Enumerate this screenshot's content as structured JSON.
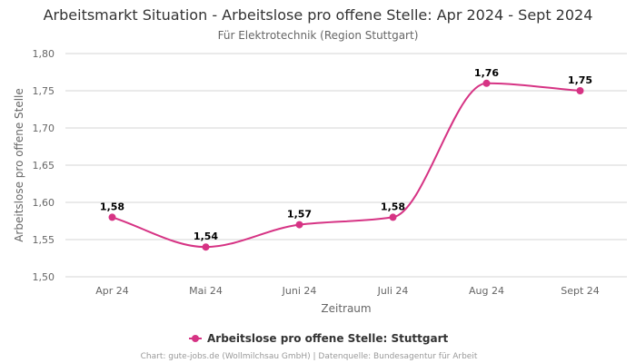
{
  "chart_data": {
    "type": "line",
    "title": "Arbeitsmarkt Situation - Arbeitslose pro offene Stelle: Apr 2024 - Sept 2024",
    "subtitle": "Für Elektrotechnik (Region Stuttgart)",
    "xlabel": "Zeitraum",
    "ylabel": "Arbeitslose pro offene Stelle",
    "categories": [
      "Apr 24",
      "Mai 24",
      "Juni 24",
      "Juli 24",
      "Aug 24",
      "Sept 24"
    ],
    "series": [
      {
        "name": "Arbeitslose pro offene Stelle: Stuttgart",
        "values": [
          1.58,
          1.54,
          1.57,
          1.58,
          1.76,
          1.75
        ],
        "labels": [
          "1,58",
          "1,54",
          "1,57",
          "1,58",
          "1,76",
          "1,75"
        ],
        "color": "#d63384"
      }
    ],
    "ylim": [
      1.5,
      1.8
    ],
    "yticks": [
      1.5,
      1.55,
      1.6,
      1.65,
      1.7,
      1.75,
      1.8
    ],
    "ytick_labels": [
      "1,50",
      "1,55",
      "1,60",
      "1,65",
      "1,70",
      "1,75",
      "1,80"
    ],
    "grid": true,
    "legend_position": "bottom-center",
    "credits": "Chart: gute-jobs.de (Wollmilchsau GmbH) | Datenquelle: Bundesagentur für Arbeit"
  }
}
